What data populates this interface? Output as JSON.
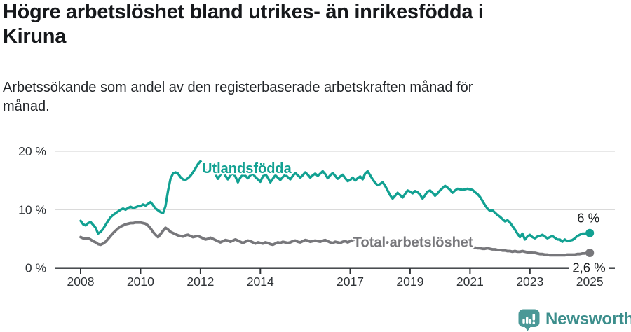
{
  "header": {
    "title": "Högre arbetslöshet bland utrikes- än inrikesfödda i\nKiruna",
    "subtitle": "Arbetssökande som andel av den registerbaserade arbetskraften månad för\nmånad."
  },
  "footer": {
    "brand": "Newsworthy",
    "brand_color": "#3c8e8c",
    "icon": "bar-chart-speech-bubble-icon",
    "icon_color": "#4a9897"
  },
  "chart_data": {
    "type": "line",
    "unit": "%",
    "xlim": [
      2008,
      2025
    ],
    "ylim": [
      0,
      20
    ],
    "grid": "horizontal",
    "points_per_year": 12,
    "x_start_year": 2008,
    "x_tick_years": [
      2008,
      2010,
      2012,
      2014,
      2017,
      2019,
      2021,
      2023,
      2025
    ],
    "y_ticks": [
      {
        "value": 0,
        "label": "0 %"
      },
      {
        "value": 10,
        "label": "10 %"
      },
      {
        "value": 20,
        "label": "20 %"
      }
    ],
    "series": [
      {
        "name": "Total arbetslöshet",
        "color": "#77777b",
        "stroke_width": 3.8,
        "end_label": "2,6 %",
        "end_value": 2.6,
        "label_pos": {
          "year": 2017.1,
          "pct": 3.62,
          "anchor": "start"
        },
        "end_label_pos": {
          "year": 2024.97,
          "pct": -0.72,
          "anchor": "middle",
          "bg": true
        },
        "values": [
          5.3,
          5.1,
          5.0,
          5.1,
          4.9,
          4.6,
          4.4,
          4.1,
          4.0,
          4.2,
          4.5,
          5.0,
          5.5,
          6.0,
          6.4,
          6.8,
          7.1,
          7.3,
          7.5,
          7.6,
          7.7,
          7.7,
          7.8,
          7.8,
          7.8,
          7.7,
          7.6,
          7.3,
          6.8,
          6.2,
          5.7,
          5.3,
          5.8,
          6.4,
          6.9,
          6.6,
          6.2,
          6.0,
          5.8,
          5.6,
          5.5,
          5.4,
          5.6,
          5.7,
          5.5,
          5.3,
          5.4,
          5.5,
          5.3,
          5.1,
          4.9,
          5.0,
          5.2,
          5.0,
          4.8,
          4.6,
          4.4,
          4.6,
          4.8,
          4.7,
          4.5,
          4.7,
          4.9,
          4.7,
          4.5,
          4.3,
          4.5,
          4.7,
          4.6,
          4.4,
          4.2,
          4.4,
          4.3,
          4.2,
          4.4,
          4.3,
          4.1,
          4.0,
          4.2,
          4.4,
          4.3,
          4.5,
          4.4,
          4.3,
          4.4,
          4.6,
          4.7,
          4.5,
          4.4,
          4.6,
          4.8,
          4.7,
          4.5,
          4.6,
          4.7,
          4.6,
          4.5,
          4.7,
          4.8,
          4.6,
          4.4,
          4.3,
          4.5,
          4.4,
          4.3,
          4.5,
          4.6,
          4.4,
          4.6,
          4.8,
          4.9,
          4.7,
          4.6,
          4.8,
          5.0,
          4.9,
          4.7,
          4.5,
          4.3,
          4.2,
          4.5,
          4.4,
          4.3,
          4.4,
          4.3,
          4.2,
          4.3,
          4.4,
          4.3,
          4.2,
          4.1,
          4.2,
          4.1,
          4.0,
          4.1,
          4.0,
          3.9,
          4.0,
          4.1,
          4.0,
          3.9,
          4.0,
          4.1,
          4.2,
          4.3,
          4.4,
          4.5,
          4.4,
          4.3,
          4.2,
          4.3,
          4.2,
          4.1,
          4.0,
          3.9,
          3.8,
          3.7,
          3.6,
          3.5,
          3.4,
          3.4,
          3.3,
          3.3,
          3.4,
          3.3,
          3.2,
          3.2,
          3.1,
          3.1,
          3.0,
          3.0,
          2.9,
          2.9,
          2.8,
          2.9,
          2.8,
          2.8,
          2.9,
          2.8,
          2.7,
          2.7,
          2.6,
          2.6,
          2.5,
          2.4,
          2.4,
          2.3,
          2.3,
          2.2,
          2.2,
          2.2,
          2.2,
          2.2,
          2.2,
          2.2,
          2.3,
          2.3,
          2.3,
          2.3,
          2.4,
          2.4,
          2.5,
          2.5,
          2.6,
          2.6
        ]
      },
      {
        "name": "Utlandsfödda",
        "color": "#12a192",
        "stroke_width": 3.4,
        "end_label": "6 %",
        "end_value": 6.0,
        "label_pos": {
          "year": 2012.05,
          "pct": 16.3,
          "anchor": "start"
        },
        "end_label_pos": {
          "year": 2024.95,
          "pct": 7.85,
          "anchor": "middle",
          "bg": false
        },
        "values": [
          8.1,
          7.5,
          7.3,
          7.7,
          7.9,
          7.4,
          6.9,
          5.9,
          6.2,
          6.7,
          7.4,
          8.1,
          8.7,
          9.1,
          9.4,
          9.7,
          10.0,
          10.2,
          10.0,
          10.3,
          10.5,
          10.3,
          10.4,
          10.6,
          10.6,
          10.9,
          10.7,
          11.0,
          11.3,
          10.8,
          10.2,
          9.9,
          9.6,
          9.4,
          10.6,
          13.2,
          15.3,
          16.2,
          16.4,
          16.2,
          15.6,
          15.2,
          15.1,
          15.4,
          15.8,
          16.4,
          17.1,
          17.8,
          18.3,
          17.7,
          16.9,
          16.3,
          16.6,
          16.9,
          16.1,
          15.3,
          16.0,
          16.5,
          15.8,
          15.2,
          15.9,
          16.3,
          15.7,
          14.7,
          15.5,
          16.0,
          15.8,
          15.4,
          15.9,
          16.2,
          15.6,
          15.2,
          14.8,
          15.7,
          16.1,
          15.5,
          14.7,
          15.3,
          15.9,
          15.5,
          15.1,
          15.6,
          16.0,
          15.6,
          15.2,
          15.8,
          16.3,
          15.9,
          15.5,
          15.9,
          16.4,
          16.0,
          15.5,
          15.9,
          16.2,
          15.8,
          16.2,
          16.6,
          16.1,
          15.4,
          15.9,
          16.3,
          15.8,
          15.3,
          15.7,
          16.0,
          15.4,
          14.9,
          15.1,
          15.5,
          15.0,
          15.4,
          15.7,
          15.2,
          16.2,
          16.6,
          15.9,
          15.2,
          14.6,
          14.2,
          14.4,
          14.7,
          14.1,
          13.3,
          12.5,
          11.9,
          12.4,
          12.9,
          12.5,
          12.1,
          12.7,
          13.3,
          13.1,
          12.8,
          13.2,
          13.0,
          12.6,
          11.9,
          12.5,
          13.1,
          13.3,
          12.9,
          12.4,
          12.8,
          13.3,
          13.7,
          14.1,
          13.8,
          13.4,
          12.9,
          13.3,
          13.6,
          13.5,
          13.4,
          13.5,
          13.6,
          13.5,
          13.4,
          13.0,
          12.7,
          12.2,
          11.5,
          10.8,
          10.2,
          9.8,
          9.9,
          9.5,
          9.1,
          8.8,
          8.4,
          8.0,
          8.2,
          7.8,
          7.2,
          6.6,
          5.9,
          5.3,
          5.9,
          4.9,
          5.4,
          5.7,
          5.3,
          5.1,
          5.4,
          5.5,
          5.7,
          5.4,
          5.1,
          5.3,
          5.5,
          5.2,
          4.9,
          4.9,
          4.5,
          4.9,
          4.6,
          4.7,
          4.8,
          5.1,
          5.5,
          5.7,
          5.9,
          5.9,
          6.0,
          6.0
        ]
      }
    ]
  }
}
